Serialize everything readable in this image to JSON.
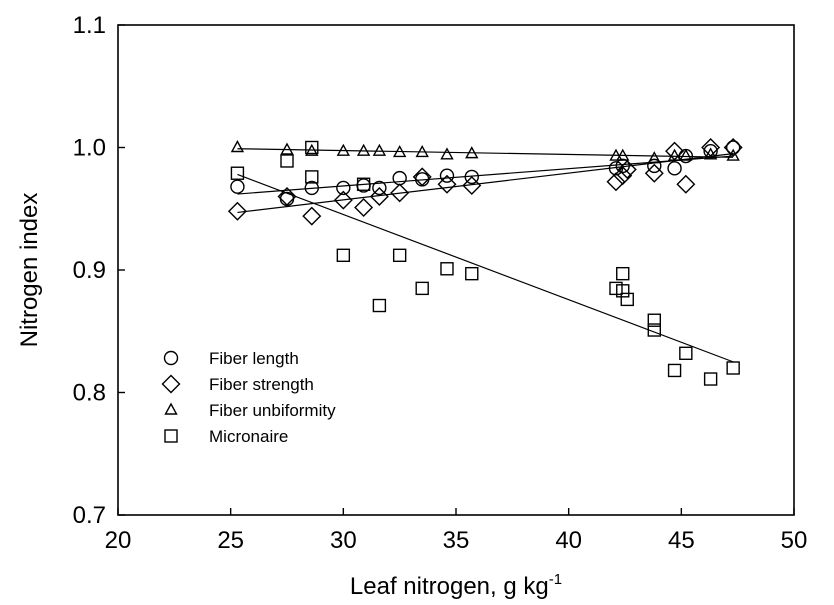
{
  "chart_data": {
    "type": "scatter",
    "xlabel": "Leaf nitrogen, g kg",
    "xlabel_superscript": "-1",
    "ylabel": "Nitrogen index",
    "xlim": [
      20,
      50
    ],
    "ylim": [
      0.7,
      1.1
    ],
    "x_ticks": [
      20,
      25,
      30,
      35,
      40,
      45,
      50
    ],
    "x_tick_labels": [
      "20",
      "25",
      "30",
      "35",
      "40",
      "45",
      "50"
    ],
    "y_ticks": [
      0.7,
      0.8,
      0.9,
      1.0,
      1.1
    ],
    "y_tick_labels": [
      "0.7",
      "0.8",
      "0.9",
      "1.0",
      "1.1"
    ],
    "grid": false,
    "legend_position": "bottom-left",
    "series": [
      {
        "name": "Fiber length",
        "marker": "circle",
        "points": [
          [
            25.3,
            0.968
          ],
          [
            27.5,
            0.958
          ],
          [
            28.6,
            0.967
          ],
          [
            30.0,
            0.967
          ],
          [
            30.9,
            0.969
          ],
          [
            31.6,
            0.967
          ],
          [
            32.5,
            0.975
          ],
          [
            33.5,
            0.974
          ],
          [
            34.6,
            0.977
          ],
          [
            35.7,
            0.976
          ],
          [
            42.1,
            0.983
          ],
          [
            42.4,
            0.985
          ],
          [
            43.8,
            0.985
          ],
          [
            44.7,
            0.983
          ],
          [
            45.2,
            0.993
          ],
          [
            46.3,
            0.997
          ],
          [
            47.3,
            1.0
          ]
        ],
        "fit": [
          [
            25.3,
            0.962
          ],
          [
            47.3,
            0.993
          ]
        ]
      },
      {
        "name": "Fiber strength",
        "marker": "diamond",
        "points": [
          [
            25.3,
            0.948
          ],
          [
            27.5,
            0.96
          ],
          [
            28.6,
            0.944
          ],
          [
            30.0,
            0.957
          ],
          [
            30.9,
            0.951
          ],
          [
            31.6,
            0.96
          ],
          [
            32.5,
            0.963
          ],
          [
            33.5,
            0.976
          ],
          [
            34.6,
            0.97
          ],
          [
            35.7,
            0.969
          ],
          [
            42.1,
            0.972
          ],
          [
            42.4,
            0.977
          ],
          [
            42.6,
            0.982
          ],
          [
            43.8,
            0.979
          ],
          [
            44.7,
            0.997
          ],
          [
            45.2,
            0.97
          ],
          [
            46.3,
            1.0
          ],
          [
            47.3,
            1.0
          ]
        ],
        "fit": [
          [
            25.3,
            0.947
          ],
          [
            47.3,
            0.995
          ]
        ]
      },
      {
        "name": "Fiber unbiformity",
        "marker": "triangle",
        "points": [
          [
            25.3,
            1.0
          ],
          [
            27.5,
            0.998
          ],
          [
            28.6,
            0.997
          ],
          [
            30.0,
            0.997
          ],
          [
            30.9,
            0.997
          ],
          [
            31.6,
            0.997
          ],
          [
            32.5,
            0.996
          ],
          [
            33.5,
            0.996
          ],
          [
            34.6,
            0.994
          ],
          [
            35.7,
            0.995
          ],
          [
            42.1,
            0.993
          ],
          [
            42.4,
            0.993
          ],
          [
            43.8,
            0.991
          ],
          [
            44.7,
            0.993
          ],
          [
            45.2,
            0.993
          ],
          [
            46.3,
            0.994
          ],
          [
            47.3,
            0.993
          ]
        ],
        "fit": [
          [
            25.3,
            0.999
          ],
          [
            47.3,
            0.992
          ]
        ]
      },
      {
        "name": "Micronaire",
        "marker": "square",
        "points": [
          [
            25.3,
            0.979
          ],
          [
            27.5,
            0.989
          ],
          [
            28.6,
            1.0
          ],
          [
            28.6,
            0.976
          ],
          [
            30.0,
            0.912
          ],
          [
            30.9,
            0.97
          ],
          [
            31.6,
            0.871
          ],
          [
            32.5,
            0.912
          ],
          [
            33.5,
            0.885
          ],
          [
            34.6,
            0.901
          ],
          [
            35.7,
            0.897
          ],
          [
            42.1,
            0.885
          ],
          [
            42.4,
            0.897
          ],
          [
            42.4,
            0.883
          ],
          [
            42.6,
            0.876
          ],
          [
            43.8,
            0.859
          ],
          [
            43.8,
            0.851
          ],
          [
            44.7,
            0.818
          ],
          [
            45.2,
            0.832
          ],
          [
            46.3,
            0.811
          ],
          [
            47.3,
            0.82
          ]
        ],
        "fit": [
          [
            25.3,
            0.978
          ],
          [
            47.3,
            0.825
          ]
        ]
      }
    ]
  }
}
